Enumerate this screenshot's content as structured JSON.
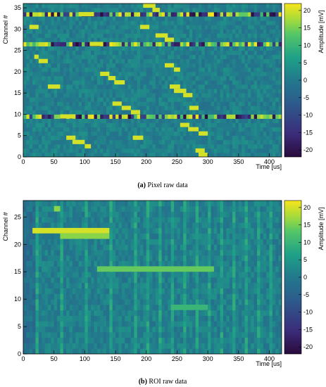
{
  "chart_data": [
    {
      "type": "heatmap",
      "caption_tag": "(a)",
      "caption_text": "Pixel raw data",
      "xlabel": "Time [us]",
      "ylabel": "Channel #",
      "zlabel": "Amplitude [mV]",
      "xlim": [
        0,
        420
      ],
      "ylim": [
        0,
        36
      ],
      "zlim": [
        -22,
        22
      ],
      "x_ticks": [
        0,
        50,
        100,
        150,
        200,
        250,
        300,
        350,
        400
      ],
      "y_ticks": [
        0,
        5,
        10,
        15,
        20,
        25,
        30,
        35
      ],
      "z_ticks": [
        20,
        15,
        10,
        5,
        0,
        -5,
        -10,
        -15,
        -20
      ],
      "noisy_rows": [
        9,
        26,
        33
      ],
      "hits": [
        {
          "channel": 30,
          "t_start": 10,
          "t_end": 25,
          "amplitude": 20
        },
        {
          "channel": 23,
          "t_start": 18,
          "t_end": 25,
          "amplitude": 20
        },
        {
          "channel": 22,
          "t_start": 25,
          "t_end": 40,
          "amplitude": 20
        },
        {
          "channel": 16,
          "t_start": 40,
          "t_end": 60,
          "amplitude": 20
        },
        {
          "channel": 9,
          "t_start": 60,
          "t_end": 85,
          "amplitude": 20
        },
        {
          "channel": 4,
          "t_start": 70,
          "t_end": 85,
          "amplitude": 20
        },
        {
          "channel": 3,
          "t_start": 80,
          "t_end": 100,
          "amplitude": 20
        },
        {
          "channel": 2,
          "t_start": 100,
          "t_end": 110,
          "amplitude": 20
        },
        {
          "channel": 33,
          "t_start": 90,
          "t_end": 115,
          "amplitude": 20
        },
        {
          "channel": 26,
          "t_start": 108,
          "t_end": 130,
          "amplitude": 20
        },
        {
          "channel": 19,
          "t_start": 125,
          "t_end": 140,
          "amplitude": 20
        },
        {
          "channel": 18,
          "t_start": 138,
          "t_end": 150,
          "amplitude": 20
        },
        {
          "channel": 17,
          "t_start": 148,
          "t_end": 165,
          "amplitude": 20
        },
        {
          "channel": 12,
          "t_start": 145,
          "t_end": 160,
          "amplitude": 20
        },
        {
          "channel": 11,
          "t_start": 160,
          "t_end": 175,
          "amplitude": 20
        },
        {
          "channel": 10,
          "t_start": 175,
          "t_end": 190,
          "amplitude": 20
        },
        {
          "channel": 4,
          "t_start": 178,
          "t_end": 195,
          "amplitude": 20
        },
        {
          "channel": 35,
          "t_start": 195,
          "t_end": 215,
          "amplitude": 20
        },
        {
          "channel": 34,
          "t_start": 210,
          "t_end": 222,
          "amplitude": 20
        },
        {
          "channel": 30,
          "t_start": 190,
          "t_end": 205,
          "amplitude": 20
        },
        {
          "channel": 28,
          "t_start": 215,
          "t_end": 235,
          "amplitude": 20
        },
        {
          "channel": 27,
          "t_start": 230,
          "t_end": 245,
          "amplitude": 20
        },
        {
          "channel": 21,
          "t_start": 230,
          "t_end": 245,
          "amplitude": 20
        },
        {
          "channel": 20,
          "t_start": 245,
          "t_end": 255,
          "amplitude": 20
        },
        {
          "channel": 16,
          "t_start": 238,
          "t_end": 255,
          "amplitude": 20
        },
        {
          "channel": 15,
          "t_start": 245,
          "t_end": 265,
          "amplitude": 20
        },
        {
          "channel": 14,
          "t_start": 260,
          "t_end": 275,
          "amplitude": 20
        },
        {
          "channel": 11,
          "t_start": 270,
          "t_end": 285,
          "amplitude": 20
        },
        {
          "channel": 7,
          "t_start": 255,
          "t_end": 270,
          "amplitude": 20
        },
        {
          "channel": 6,
          "t_start": 268,
          "t_end": 285,
          "amplitude": 20
        },
        {
          "channel": 5,
          "t_start": 285,
          "t_end": 300,
          "amplitude": 20
        },
        {
          "channel": 1,
          "t_start": 280,
          "t_end": 295,
          "amplitude": 20
        },
        {
          "channel": 0,
          "t_start": 285,
          "t_end": 300,
          "amplitude": 20
        }
      ]
    },
    {
      "type": "heatmap",
      "caption_tag": "(b)",
      "caption_text": "ROI raw data",
      "xlabel": "Time [us]",
      "ylabel": "Channel #",
      "zlabel": "Amplitude [mV]",
      "xlim": [
        0,
        420
      ],
      "ylim": [
        0,
        28
      ],
      "zlim": [
        -22,
        22
      ],
      "x_ticks": [
        0,
        50,
        100,
        150,
        200,
        250,
        300,
        350,
        400
      ],
      "y_ticks": [
        0,
        5,
        10,
        15,
        20,
        25
      ],
      "z_ticks": [
        20,
        15,
        10,
        5,
        0,
        -5,
        -10,
        -15,
        -20
      ],
      "vertical_bands_t": [
        20,
        60,
        100,
        140,
        180,
        200,
        220,
        240,
        260,
        280,
        300,
        320,
        340,
        360,
        380,
        400
      ],
      "hits": [
        {
          "channel": 22,
          "t_start": 15,
          "t_end": 140,
          "amplitude": 20
        },
        {
          "channel": 21,
          "t_start": 60,
          "t_end": 140,
          "amplitude": 16
        },
        {
          "channel": 15,
          "t_start": 120,
          "t_end": 310,
          "amplitude": 14
        },
        {
          "channel": 26,
          "t_start": 50,
          "t_end": 60,
          "amplitude": 16
        },
        {
          "channel": 8,
          "t_start": 240,
          "t_end": 300,
          "amplitude": 10
        }
      ]
    }
  ]
}
